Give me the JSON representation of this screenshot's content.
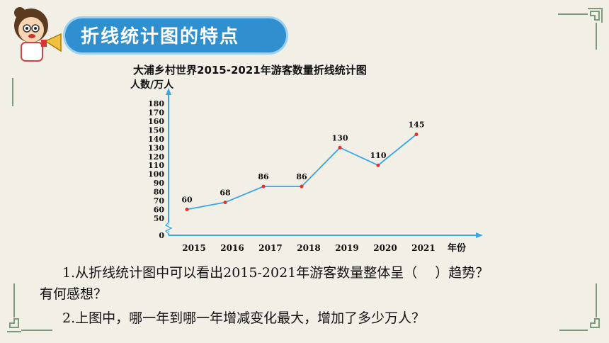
{
  "section_title": "折线统计图的特点",
  "chart_data": {
    "type": "line",
    "title": "大浦乡村世界2015-2021年游客数量折线统计图",
    "ylabel": "人数/万人",
    "xlabel": "年份",
    "categories": [
      "2015",
      "2016",
      "2017",
      "2018",
      "2019",
      "2020",
      "2021"
    ],
    "values": [
      60,
      68,
      86,
      86,
      130,
      110,
      145
    ],
    "y_ticks": [
      "0",
      "50",
      "60",
      "70",
      "80",
      "90",
      "100",
      "110",
      "120",
      "130",
      "140",
      "150",
      "160",
      "170",
      "180"
    ],
    "axis_break": true,
    "ylim": [
      50,
      180
    ],
    "line_color": "#39a6e6",
    "point_color": "#e8312a"
  },
  "questions": {
    "q1_line1": "1.从折线统计图中可以看出2015-2021年游客数量整体呈（　 ）趋势？",
    "q1_line2": "有何感想？",
    "q2": "2.上图中，哪一年到哪一年增减变化最大，增加了多少万人？"
  }
}
